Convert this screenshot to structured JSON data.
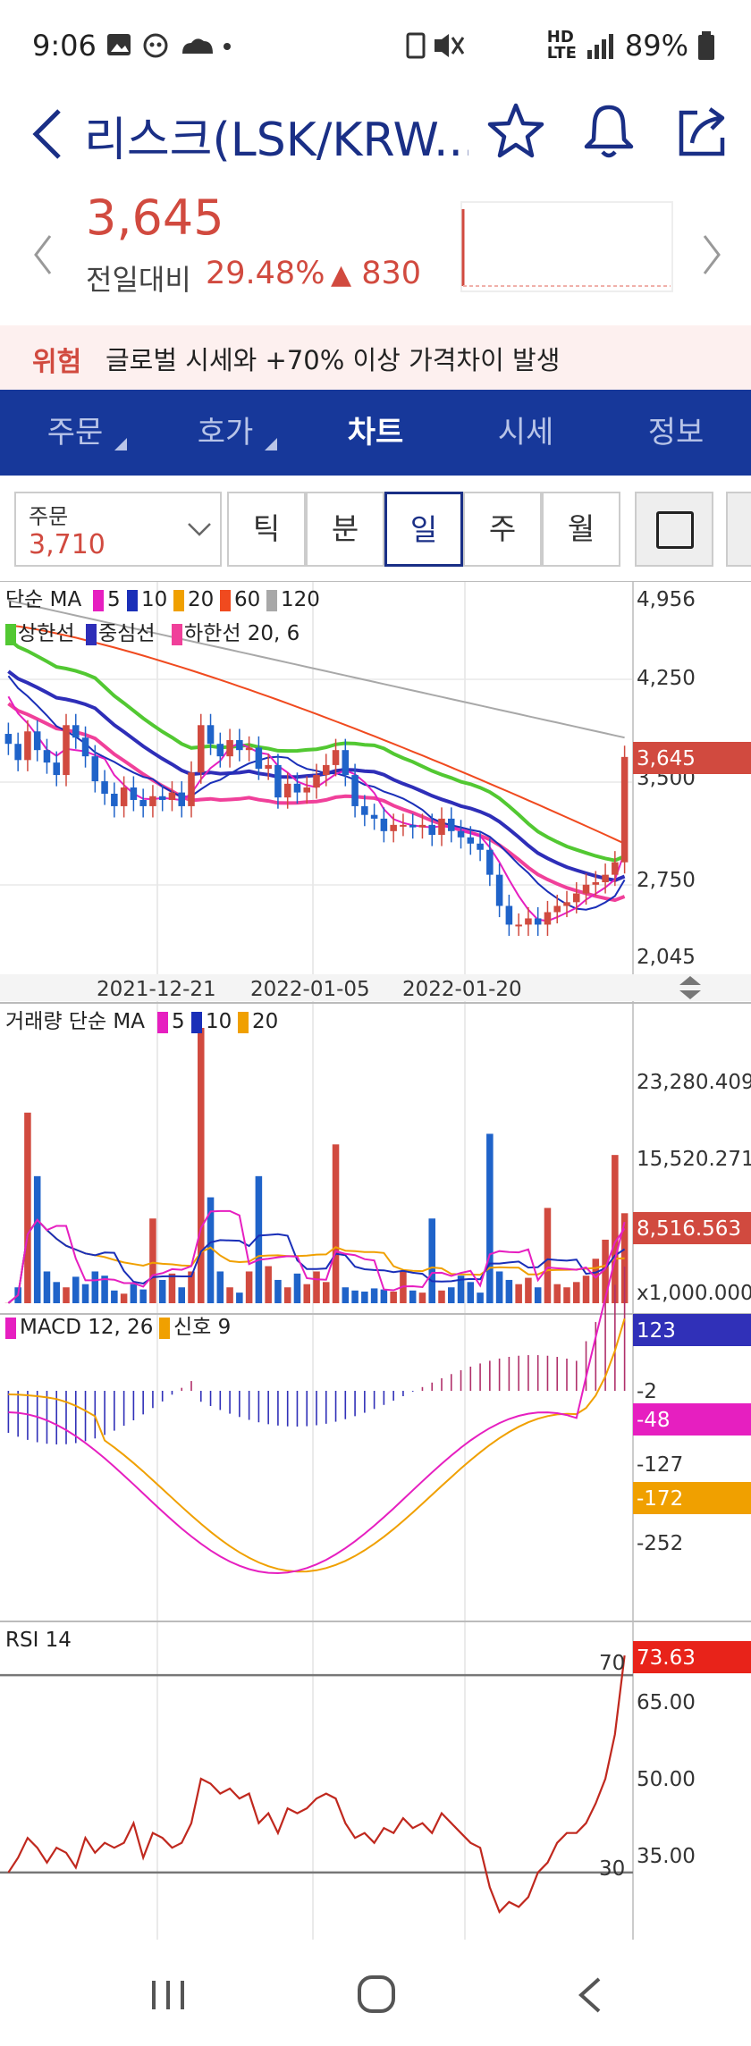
{
  "status": {
    "time": "9:06",
    "battery": "89%",
    "net1": "HD",
    "net2": "LTE"
  },
  "header": {
    "title": "리스크(LSK/KRW...",
    "back_icon": "chevron-left-icon",
    "star_icon": "star-icon",
    "bell_icon": "bell-icon",
    "share_icon": "share-icon"
  },
  "price": {
    "current": "3,645",
    "compare_label": "전일대비",
    "change_pct": "29.48%",
    "change_arrow": "▲",
    "change_value": "830",
    "color": "#d14a3f"
  },
  "warning": {
    "tag": "위험",
    "message": "글로벌 시세와 +70% 이상 가격차이 발생"
  },
  "tabs": [
    {
      "label": "주문",
      "active": false
    },
    {
      "label": "호가",
      "active": false
    },
    {
      "label": "차트",
      "active": true
    },
    {
      "label": "시세",
      "active": false
    },
    {
      "label": "정보",
      "active": false
    }
  ],
  "toolbar": {
    "order_label": "주문",
    "order_value": "3,710",
    "periods": [
      "틱",
      "분",
      "일",
      "주",
      "월"
    ],
    "selected_period": "일"
  },
  "chart_data": [
    {
      "type": "candlestick",
      "legend_ma": {
        "label": "단순 MA",
        "items": [
          "5",
          "10",
          "20",
          "60",
          "120"
        ]
      },
      "legend_env": {
        "items": [
          "상한선",
          "중심선",
          "하한선 20, 6"
        ]
      },
      "y_ticks": [
        "4,956",
        "4,250",
        "3,500",
        "2,750",
        "2,045"
      ],
      "last_price_label": "3,645",
      "x_ticks": [
        "2021-12-21",
        "2022-01-05",
        "2022-01-20"
      ],
      "close": [
        3750,
        3620,
        3850,
        3700,
        3600,
        3500,
        3900,
        3800,
        3650,
        3450,
        3350,
        3250,
        3400,
        3300,
        3250,
        3330,
        3300,
        3360,
        3250,
        3520,
        3900,
        3750,
        3650,
        3780,
        3700,
        3720,
        3550,
        3580,
        3320,
        3430,
        3360,
        3400,
        3500,
        3580,
        3700,
        3500,
        3250,
        3180,
        3150,
        3050,
        3100,
        3100,
        3080,
        3100,
        3020,
        3150,
        3050,
        3000,
        2950,
        2900,
        2700,
        2450,
        2300,
        2300,
        2350,
        2300,
        2400,
        2450,
        2480,
        2550,
        2620,
        2640,
        2700,
        2800,
        3645
      ],
      "colors": {
        "up": "#d14a3f",
        "down": "#1f63c9",
        "ma5": "#e61fc0",
        "ma10": "#1a2fb8",
        "ma20": "#f0a000",
        "ma60": "#f04a1f",
        "ma120": "#a8a8a8",
        "upper": "#52c832",
        "middle": "#2e2eb8",
        "lower": "#f0409a"
      }
    },
    {
      "type": "bar",
      "legend": {
        "label": "거래량 단순 MA",
        "items": [
          "5",
          "10",
          "20"
        ]
      },
      "y_ticks": [
        "23,280.409",
        "15,520.271",
        "x1,000.000"
      ],
      "last_label": "8,516.563"
    },
    {
      "type": "line",
      "legend": {
        "label": "MACD 12, 26",
        "signal": "신호 9"
      },
      "y_ticks": [
        "-2",
        "-127",
        "-252"
      ],
      "labels": {
        "hist": "123",
        "macd": "-48",
        "signal": "-172"
      }
    },
    {
      "type": "line",
      "legend": {
        "label": "RSI 14"
      },
      "y_ticks": [
        "65.00",
        "50.00",
        "35.00"
      ],
      "guide_labels": [
        "70",
        "30"
      ],
      "last_label": "73.63",
      "values": [
        30,
        33,
        37,
        35,
        32,
        35,
        34,
        31,
        37,
        34,
        36,
        35,
        36,
        40,
        33,
        38,
        37,
        35,
        36,
        40,
        49,
        48,
        46,
        47,
        45,
        46,
        40,
        42,
        38,
        43,
        42,
        43,
        45,
        46,
        45,
        40,
        37,
        38,
        36,
        39,
        38,
        41,
        39,
        40,
        38,
        42,
        40,
        38,
        36,
        35,
        27,
        22,
        24,
        23,
        25,
        30,
        32,
        36,
        38,
        38,
        40,
        44,
        49,
        58,
        74
      ]
    }
  ],
  "navbar": {
    "recent": "recent-apps-icon",
    "home": "home-icon",
    "back": "back-icon"
  }
}
